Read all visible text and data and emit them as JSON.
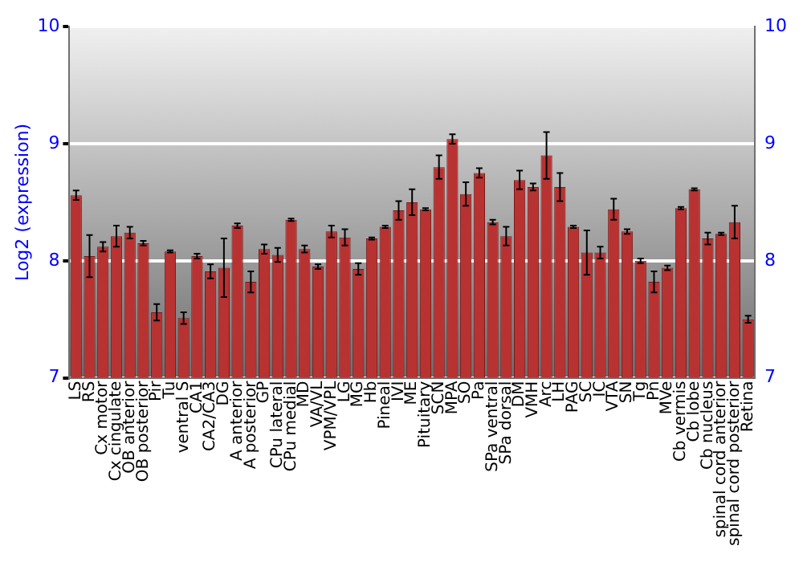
{
  "chart_data": {
    "type": "bar",
    "ylabel": "Log2 (expression)",
    "categories": [
      "LS",
      "RS",
      "Cx motor",
      "Cx cingulate",
      "OB anterior",
      "OB posterior",
      "Pir",
      "Tu",
      "ventral S",
      "CA1",
      "CA2/CA3",
      "DG",
      "A anterior",
      "A posterior",
      "GP",
      "CPu lateral",
      "CPu medial",
      "MD",
      "VA/VL",
      "VPM/VPL",
      "LG",
      "MG",
      "Hb",
      "Pineal",
      "IVI",
      "ME",
      "Pituitary",
      "SCN",
      "MPA",
      "SO",
      "Pa",
      "SPa ventral",
      "SPa dorsal",
      "DM",
      "VMH",
      "Arc",
      "LH",
      "PAG",
      "SC",
      "IC",
      "VTA",
      "SN",
      "Tg",
      "Pn",
      "MVe",
      "Cb vermis",
      "Cb lobe",
      "Cb nucleus",
      "spinal cord anterior",
      "spinal cord posterior",
      "Retina"
    ],
    "values": [
      8.56,
      8.04,
      8.12,
      8.21,
      8.24,
      8.15,
      7.56,
      8.08,
      7.51,
      8.04,
      7.91,
      7.94,
      8.3,
      7.82,
      8.1,
      8.05,
      8.35,
      8.1,
      7.95,
      8.25,
      8.2,
      7.93,
      8.19,
      8.29,
      8.43,
      8.5,
      8.44,
      8.8,
      9.04,
      8.57,
      8.75,
      8.33,
      8.21,
      8.69,
      8.63,
      8.9,
      8.63,
      8.29,
      8.07,
      8.07,
      8.44,
      8.25,
      8.0,
      7.82,
      7.94,
      8.45,
      8.61,
      8.19,
      8.23,
      8.33,
      7.5
    ],
    "errors": [
      0.04,
      0.18,
      0.04,
      0.09,
      0.05,
      0.02,
      0.07,
      0.01,
      0.05,
      0.02,
      0.06,
      0.25,
      0.02,
      0.09,
      0.04,
      0.06,
      0.01,
      0.03,
      0.02,
      0.05,
      0.07,
      0.05,
      0.01,
      0.01,
      0.08,
      0.11,
      0.01,
      0.1,
      0.04,
      0.1,
      0.04,
      0.02,
      0.08,
      0.08,
      0.03,
      0.2,
      0.12,
      0.01,
      0.19,
      0.05,
      0.09,
      0.02,
      0.02,
      0.09,
      0.02,
      0.01,
      0.01,
      0.05,
      0.01,
      0.14,
      0.03
    ],
    "color": "#b83232",
    "ylim": [
      7,
      10
    ],
    "yticks": [
      7,
      8,
      9,
      10
    ],
    "y2lim": [
      7,
      10
    ],
    "y2ticks": [
      7,
      8,
      9,
      10
    ],
    "grid": "y"
  }
}
